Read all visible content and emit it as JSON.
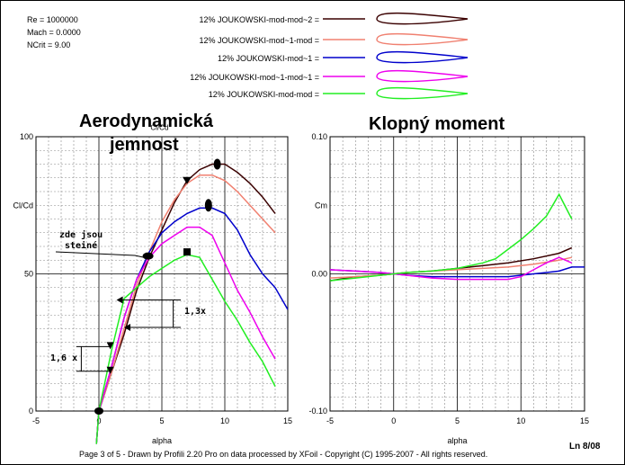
{
  "header": {
    "re": "Re = 1000000",
    "mach": "Mach = 0.0000",
    "ncrit": "NCrit = 9.00"
  },
  "legend": [
    {
      "label": "12% JOUKOWSKI-mod-mod~2 =",
      "color": "#3a0000"
    },
    {
      "label": "12% JOUKOWSKI-mod~1-mod =",
      "color": "#f08070"
    },
    {
      "label": "12% JOUKOWSKI-mod~1 =",
      "color": "#0000cc"
    },
    {
      "label": "12% JOUKOWSKI-mod~1-mod~1 =",
      "color": "#ee00ee"
    },
    {
      "label": "12% JOUKOWSKI-mod-mod =",
      "color": "#22ee22"
    }
  ],
  "annotations": {
    "title_left_1": "Aerodynamická",
    "title_left_2": "jemnost",
    "title_right": "Klopný  moment",
    "zde_1": "zde jsou",
    "zde_2": "steiné",
    "dim_13": "1,3x",
    "dim_16": "1,6 x",
    "overlap_tick": "Cl/Cd"
  },
  "footer": {
    "text": "Page 3 of 5   -   Drawn by Profili 2.20 Pro on data processed by  XFoil - Copyright (C) 1995-2007 - All rights reserved.",
    "page": "Ln 8/08"
  },
  "chart_data": [
    {
      "type": "line",
      "xlabel": "alpha",
      "ylabel": "Cl/Cd",
      "xlim": [
        -5,
        15
      ],
      "ylim": [
        0,
        100
      ],
      "x_ticks": [
        "-5",
        "0",
        "5",
        "10",
        "15"
      ],
      "y_ticks": [
        "0",
        "50",
        "100"
      ],
      "grid": true,
      "series": [
        {
          "name": "12% JOUKOWSKI-mod-mod~2",
          "color": "#3a0000",
          "x": [
            -0.2,
            0,
            1,
            2,
            3,
            4,
            5,
            6,
            7,
            8,
            9,
            10,
            11,
            12,
            13,
            14
          ],
          "y": [
            -12,
            0,
            14,
            28,
            44,
            56,
            66,
            76,
            84,
            88,
            90,
            90,
            87,
            83,
            78,
            72
          ]
        },
        {
          "name": "12% JOUKOWSKI-mod~1-mod",
          "color": "#f08070",
          "x": [
            -0.2,
            0,
            1,
            2,
            3,
            4,
            5,
            6,
            7,
            8,
            9,
            10,
            11,
            12,
            13,
            14
          ],
          "y": [
            -12,
            0,
            14,
            30,
            46,
            58,
            69,
            77,
            83,
            86,
            86,
            84,
            80,
            75,
            70,
            65
          ]
        },
        {
          "name": "12% JOUKOWSKI-mod~1",
          "color": "#0000cc",
          "x": [
            -0.2,
            0,
            1,
            2,
            3,
            4,
            5,
            6,
            7,
            8,
            9,
            10,
            11,
            12,
            13,
            14,
            15
          ],
          "y": [
            -12,
            0,
            16,
            34,
            48,
            58,
            65,
            69,
            72,
            74,
            74,
            72,
            66,
            57,
            50,
            45,
            37
          ]
        },
        {
          "name": "12% JOUKOWSKI-mod~1-mod~1",
          "color": "#ee00ee",
          "x": [
            -0.2,
            0,
            1,
            2,
            3,
            4,
            5,
            6,
            7,
            8,
            9,
            10,
            11,
            12,
            13,
            14
          ],
          "y": [
            -12,
            0,
            16,
            34,
            48,
            56,
            61,
            64,
            67,
            67,
            64,
            54,
            44,
            36,
            27,
            19
          ]
        },
        {
          "name": "12% JOUKOWSKI-mod-mod",
          "color": "#22ee22",
          "x": [
            -0.2,
            0,
            1,
            2,
            3,
            4,
            5,
            6,
            7,
            8,
            9,
            10,
            11,
            12,
            13,
            14
          ],
          "y": [
            -12,
            0,
            22,
            41,
            45,
            49,
            52,
            55,
            57,
            56,
            48,
            40,
            33,
            25,
            18,
            9
          ]
        }
      ]
    },
    {
      "type": "line",
      "xlabel": "alpha",
      "ylabel": "Cm",
      "xlim": [
        -5,
        15
      ],
      "ylim": [
        -0.1,
        0.1
      ],
      "x_ticks": [
        "-5",
        "0",
        "5",
        "10",
        "15"
      ],
      "y_ticks": [
        "-0.10",
        "0.00",
        "0.10"
      ],
      "grid": true,
      "series": [
        {
          "name": "12% JOUKOWSKI-mod-mod~2",
          "color": "#3a0000",
          "x": [
            -5,
            -3,
            -1,
            0,
            1,
            3,
            5,
            7,
            9,
            11,
            13,
            14
          ],
          "y": [
            -0.005,
            -0.002,
            -0.001,
            0,
            0.001,
            0.002,
            0.004,
            0.006,
            0.008,
            0.011,
            0.015,
            0.019
          ]
        },
        {
          "name": "12% JOUKOWSKI-mod~1-mod",
          "color": "#f08070",
          "x": [
            -5,
            -3,
            -1,
            0,
            1,
            3,
            5,
            7,
            9,
            11,
            13,
            14
          ],
          "y": [
            -0.003,
            -0.002,
            -0.001,
            0,
            0.001,
            0.002,
            0.003,
            0.004,
            0.005,
            0.007,
            0.01,
            0.012
          ]
        },
        {
          "name": "12% JOUKOWSKI-mod~1",
          "color": "#0000cc",
          "x": [
            -5,
            -3,
            -1,
            0,
            1,
            3,
            5,
            7,
            9,
            10,
            11,
            12,
            13,
            14,
            15
          ],
          "y": [
            0.003,
            0.002,
            0.001,
            0,
            -0.001,
            -0.002,
            -0.002,
            -0.002,
            -0.002,
            -0.001,
            0.0,
            0.001,
            0.002,
            0.005,
            0.005
          ]
        },
        {
          "name": "12% JOUKOWSKI-mod~1-mod~1",
          "color": "#ee00ee",
          "x": [
            -5,
            -3,
            -1,
            0,
            1,
            3,
            5,
            7,
            9,
            10,
            11,
            12,
            13,
            14
          ],
          "y": [
            0.003,
            0.002,
            0.001,
            0,
            -0.001,
            -0.003,
            -0.004,
            -0.004,
            -0.004,
            -0.002,
            0.003,
            0.008,
            0.012,
            0.008
          ]
        },
        {
          "name": "12% JOUKOWSKI-mod-mod",
          "color": "#22ee22",
          "x": [
            -5,
            -3,
            -1,
            0,
            1,
            3,
            5,
            7,
            8,
            9,
            10,
            11,
            12,
            13,
            14
          ],
          "y": [
            -0.005,
            -0.003,
            -0.001,
            0,
            0.001,
            0.002,
            0.004,
            0.008,
            0.011,
            0.018,
            0.025,
            0.033,
            0.042,
            0.058,
            0.04
          ]
        }
      ]
    }
  ]
}
